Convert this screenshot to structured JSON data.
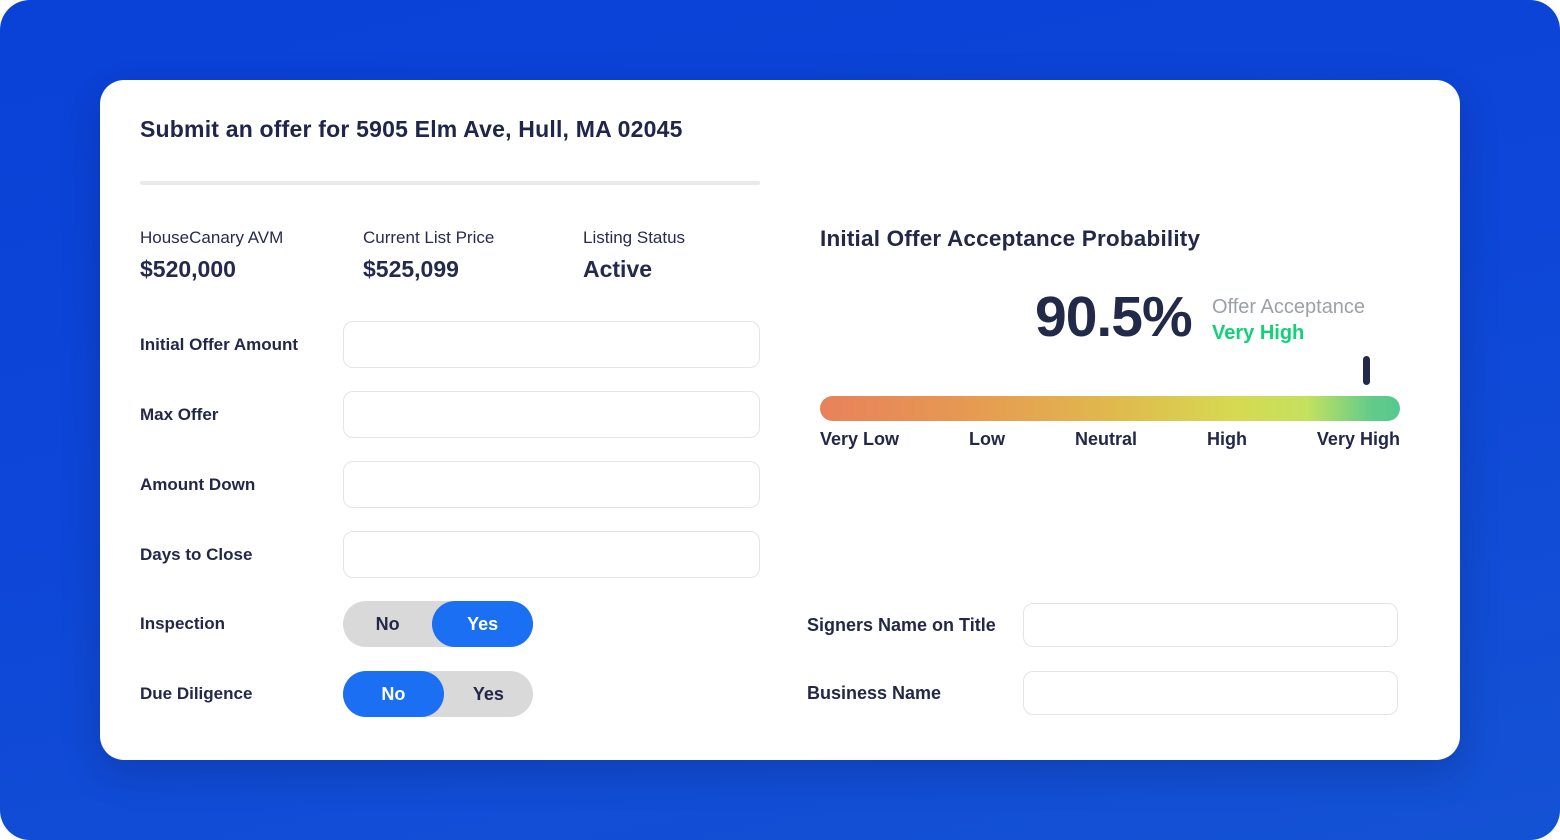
{
  "colors": {
    "background_top": "#0a41d7",
    "background_bottom": "#1452d4",
    "accent_blue": "#1a6ff2",
    "navy_text": "#232849",
    "rating_green": "#10d277",
    "muted_gray": "#9ca1a9",
    "meter_gradient": [
      "#e8815b",
      "#e69c51",
      "#e0bb4d",
      "#d6da51",
      "#c4e15f",
      "#57c88e"
    ]
  },
  "offer_form": {
    "title": "Submit an offer for 5905 Elm Ave, Hull, MA 02045",
    "stats": [
      {
        "label": "HouseCanary AVM",
        "value": "$520,000"
      },
      {
        "label": "Current List Price",
        "value": "$525,099"
      },
      {
        "label": "Listing Status",
        "value": "Active"
      }
    ],
    "fields": [
      {
        "label": "Initial Offer Amount",
        "value": ""
      },
      {
        "label": "Max Offer",
        "value": ""
      },
      {
        "label": "Amount Down",
        "value": ""
      },
      {
        "label": "Days to Close",
        "value": ""
      }
    ],
    "toggles": [
      {
        "label": "Inspection",
        "option_no": "No",
        "option_yes": "Yes",
        "selected": "Yes"
      },
      {
        "label": "Due Diligence",
        "option_no": "No",
        "option_yes": "Yes",
        "selected": "No"
      }
    ]
  },
  "probability_panel": {
    "title": "Initial Offer Acceptance Probability",
    "percentage": "90.5%",
    "metric_label": "Offer Acceptance",
    "rating": "Very High",
    "marker_position_percent": 94,
    "scale_labels": [
      "Very Low",
      "Low",
      "Neutral",
      "High",
      "Very High"
    ],
    "fields": [
      {
        "label": "Signers Name on Title",
        "value": ""
      },
      {
        "label": "Business Name",
        "value": ""
      }
    ]
  }
}
